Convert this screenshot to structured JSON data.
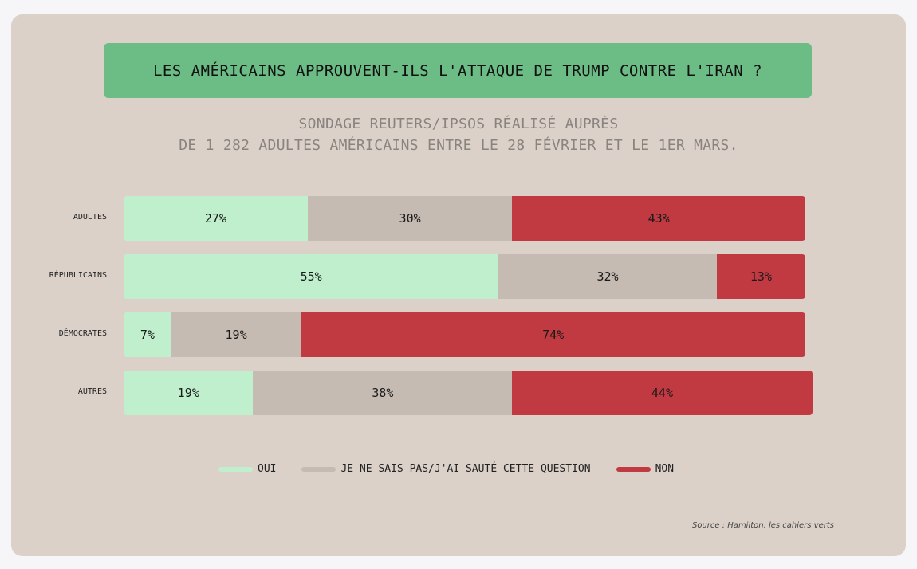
{
  "title": "LES AMÉRICAINS APPROUVENT-ILS L'ATTAQUE DE TRUMP CONTRE L'IRAN ?",
  "subtitle_line1": "SONDAGE REUTERS/IPSOS RÉALISÉ AUPRÈS",
  "subtitle_line2": "DE 1 282 ADULTES AMÉRICAINS ENTRE LE 28 FÉVRIER ET LE 1ER MARS.",
  "source": "Source : Hamilton, les cahiers verts",
  "colors": {
    "oui": "#c0efcd",
    "ne_sais_pas": "#c6bbb2",
    "non": "#c23a41"
  },
  "chart_data": {
    "type": "bar",
    "orientation": "horizontal",
    "stacked": true,
    "categories": [
      "ADULTES",
      "RÉPUBLICAINS",
      "DÉMOCRATES",
      "AUTRES"
    ],
    "series": [
      {
        "name": "OUI",
        "values": [
          27,
          55,
          7,
          19
        ],
        "value_labels": [
          "27%",
          "55%",
          "7%",
          "19%"
        ],
        "color": "#c0efcd"
      },
      {
        "name": "JE NE SAIS PAS/J'AI SAUTÉ CETTE QUESTION",
        "values": [
          30,
          32,
          19,
          38
        ],
        "value_labels": [
          "30%",
          "32%",
          "19%",
          "38%"
        ],
        "color": "#c6bbb2"
      },
      {
        "name": "NON",
        "values": [
          43,
          13,
          74,
          44
        ],
        "value_labels": [
          "43%",
          "13%",
          "74%",
          "44%"
        ],
        "color": "#c23a41"
      }
    ],
    "xlim": [
      0,
      100
    ],
    "unit": "%",
    "legend_position": "bottom",
    "grid": false
  }
}
